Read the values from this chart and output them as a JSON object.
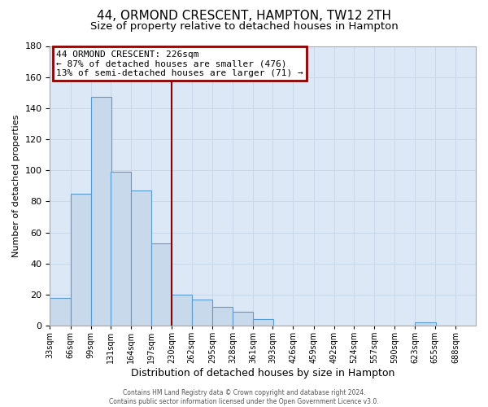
{
  "title": "44, ORMOND CRESCENT, HAMPTON, TW12 2TH",
  "subtitle": "Size of property relative to detached houses in Hampton",
  "xlabel": "Distribution of detached houses by size in Hampton",
  "ylabel": "Number of detached properties",
  "bar_left_edges": [
    33,
    66,
    99,
    131,
    164,
    197,
    230,
    262,
    295,
    328,
    361,
    393,
    426,
    459,
    492,
    524,
    557,
    590,
    623,
    655
  ],
  "bar_heights": [
    18,
    85,
    147,
    99,
    87,
    53,
    20,
    17,
    12,
    9,
    4,
    0,
    0,
    0,
    0,
    0,
    0,
    0,
    2,
    0
  ],
  "bin_width": 33,
  "bar_facecolor": "#c9d9ec",
  "bar_edgecolor": "#5b9bd5",
  "vline_x": 230,
  "vline_color": "#8b0000",
  "annotation_text": "44 ORMOND CRESCENT: 226sqm\n← 87% of detached houses are smaller (476)\n13% of semi-detached houses are larger (71) →",
  "annotation_box_color": "#8b0000",
  "ylim": [
    0,
    180
  ],
  "yticks": [
    0,
    20,
    40,
    60,
    80,
    100,
    120,
    140,
    160,
    180
  ],
  "xtick_labels": [
    "33sqm",
    "66sqm",
    "99sqm",
    "131sqm",
    "164sqm",
    "197sqm",
    "230sqm",
    "262sqm",
    "295sqm",
    "328sqm",
    "361sqm",
    "393sqm",
    "426sqm",
    "459sqm",
    "492sqm",
    "524sqm",
    "557sqm",
    "590sqm",
    "623sqm",
    "655sqm",
    "688sqm"
  ],
  "xtick_positions": [
    33,
    66,
    99,
    131,
    164,
    197,
    230,
    262,
    295,
    328,
    361,
    393,
    426,
    459,
    492,
    524,
    557,
    590,
    623,
    655,
    688
  ],
  "xlim_left": 33,
  "xlim_right": 721,
  "grid_color": "#c8d8e8",
  "background_color": "#dce8f5",
  "footer_text": "Contains HM Land Registry data © Crown copyright and database right 2024.\nContains public sector information licensed under the Open Government Licence v3.0.",
  "title_fontsize": 11,
  "subtitle_fontsize": 9.5,
  "xlabel_fontsize": 9,
  "ylabel_fontsize": 8,
  "annotation_fontsize": 8
}
